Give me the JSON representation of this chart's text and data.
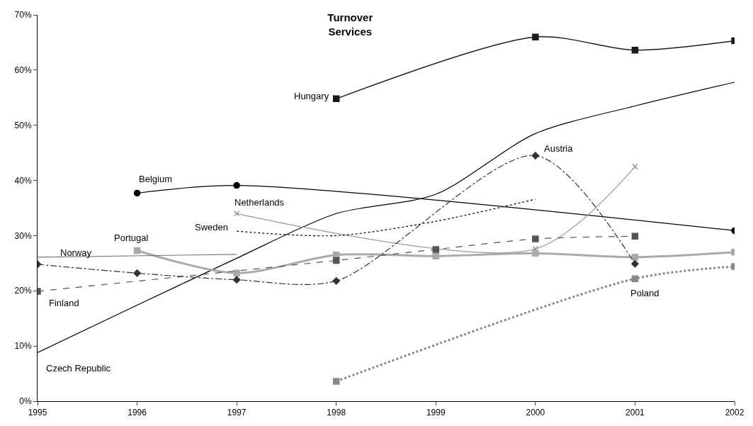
{
  "chart_data": {
    "type": "line",
    "title": "Turnover\nServices",
    "x": [
      1995,
      1996,
      1997,
      1998,
      1999,
      2000,
      2001,
      2002
    ],
    "series": [
      {
        "name": "Hungary",
        "color": "#1a1a1a",
        "marker": "square",
        "line_style": "solid",
        "values": [
          null,
          null,
          null,
          54.8,
          null,
          66.0,
          63.6,
          65.3
        ]
      },
      {
        "name": "Czech Republic",
        "color": "#000000",
        "marker": "none",
        "line_style": "solid",
        "values": [
          8.8,
          17.4,
          25.9,
          34.0,
          37.5,
          48.5,
          53.5,
          57.8
        ]
      },
      {
        "name": "Belgium",
        "color": "#000000",
        "marker": "circle",
        "line_style": "solid",
        "values": [
          null,
          37.7,
          39.1,
          null,
          null,
          null,
          null,
          30.9
        ]
      },
      {
        "name": "Netherlands",
        "color": "#999999",
        "marker": "cross",
        "line_style": "solid",
        "values": [
          null,
          null,
          34.0,
          null,
          null,
          27.6,
          42.5,
          null
        ]
      },
      {
        "name": "Sweden",
        "color": "#000000",
        "marker": "none",
        "line_style": "dotted",
        "values": [
          null,
          null,
          30.8,
          30.0,
          32.6,
          36.6,
          null,
          null
        ]
      },
      {
        "name": "Portugal",
        "color": "#aaaaaa",
        "marker": "square",
        "line_style": "solid",
        "values": [
          null,
          27.3,
          23.2,
          26.5,
          26.3,
          26.8,
          26.1,
          27.0
        ]
      },
      {
        "name": "Norway",
        "color": "#777777",
        "marker": "none",
        "line_style": "solid",
        "values": [
          26.1,
          null,
          26.6,
          null,
          null,
          null,
          null,
          null
        ]
      },
      {
        "name": "Finland",
        "color": "#555555",
        "marker": "square",
        "line_style": "dashed",
        "values": [
          19.9,
          null,
          null,
          25.5,
          27.5,
          29.4,
          29.9,
          null
        ]
      },
      {
        "name": "Austria",
        "color": "#333333",
        "marker": "diamond",
        "line_style": "dashdot",
        "values": [
          24.8,
          23.2,
          22.0,
          21.8,
          null,
          44.5,
          24.9,
          null
        ]
      },
      {
        "name": "Poland",
        "color": "#888888",
        "marker": "square",
        "line_style": "dotted",
        "values": [
          null,
          null,
          null,
          3.6,
          null,
          null,
          22.2,
          24.4
        ]
      }
    ],
    "xlim": [
      1995,
      2002
    ],
    "xticks": [
      1995,
      1996,
      1997,
      1998,
      1999,
      2000,
      2001,
      2002
    ],
    "ylim": [
      0,
      70
    ],
    "yticks": [
      {
        "value": 0,
        "label": "0%"
      },
      {
        "value": 10,
        "label": "10%"
      },
      {
        "value": 20,
        "label": "20%"
      },
      {
        "value": 30,
        "label": "30%"
      },
      {
        "value": 40,
        "label": "40%"
      },
      {
        "value": 50,
        "label": "50%"
      },
      {
        "value": 60,
        "label": "60%"
      },
      {
        "value": 70,
        "label": "70%"
      }
    ],
    "legend": false
  }
}
